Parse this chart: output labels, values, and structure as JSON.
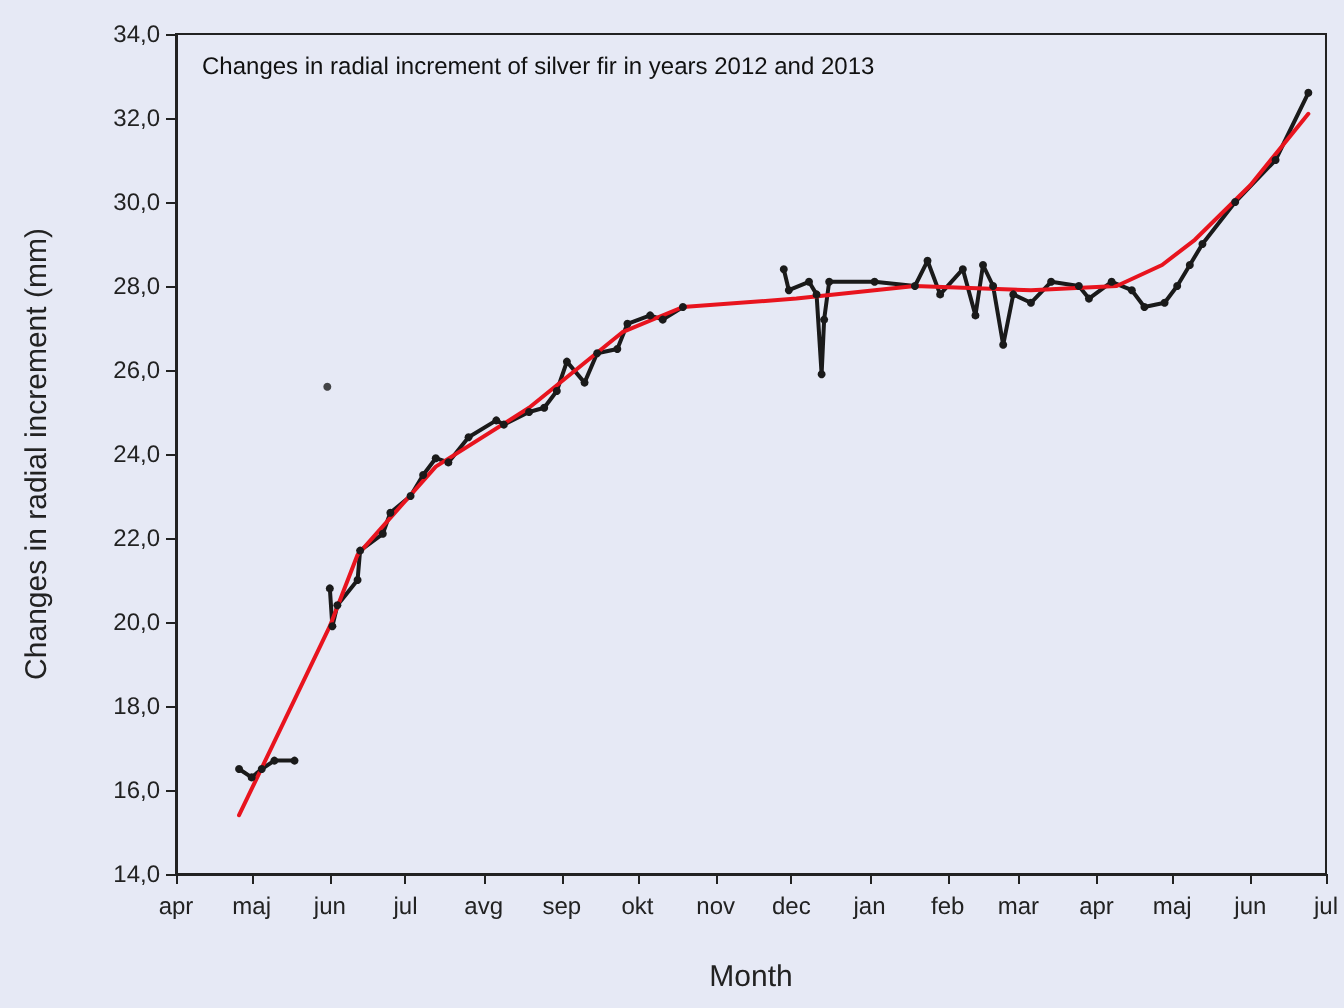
{
  "chart_data": {
    "type": "line",
    "title": "Changes in radial increment of silver fir in years 2012 and 2013",
    "xlabel": "Month",
    "ylabel": "Changes in radial increment (mm)",
    "xlim": [
      "2012-04-01",
      "2013-07-01"
    ],
    "xticks": [
      {
        "value": "2012-04-01",
        "label": "apr"
      },
      {
        "value": "2012-05-01",
        "label": "maj"
      },
      {
        "value": "2012-06-01",
        "label": "jun"
      },
      {
        "value": "2012-07-01",
        "label": "jul"
      },
      {
        "value": "2012-08-01",
        "label": "avg"
      },
      {
        "value": "2012-09-01",
        "label": "sep"
      },
      {
        "value": "2012-10-01",
        "label": "okt"
      },
      {
        "value": "2012-11-01",
        "label": "nov"
      },
      {
        "value": "2012-12-01",
        "label": "dec"
      },
      {
        "value": "2013-01-01",
        "label": "jan"
      },
      {
        "value": "2013-02-01",
        "label": "feb"
      },
      {
        "value": "2013-03-01",
        "label": "mar"
      },
      {
        "value": "2013-04-01",
        "label": "apr"
      },
      {
        "value": "2013-05-01",
        "label": "maj"
      },
      {
        "value": "2013-06-01",
        "label": "jun"
      },
      {
        "value": "2013-07-01",
        "label": "jul"
      }
    ],
    "ylim": [
      14,
      34
    ],
    "yticks": [
      {
        "value": 14,
        "label": "14,0"
      },
      {
        "value": 16,
        "label": "16,0"
      },
      {
        "value": 18,
        "label": "18,0"
      },
      {
        "value": 20,
        "label": "20,0"
      },
      {
        "value": 22,
        "label": "22,0"
      },
      {
        "value": 24,
        "label": "24,0"
      },
      {
        "value": 26,
        "label": "26,0"
      },
      {
        "value": 28,
        "label": "28,0"
      },
      {
        "value": 30,
        "label": "30,0"
      },
      {
        "value": 32,
        "label": "32,0"
      },
      {
        "value": 34,
        "label": "34,0"
      }
    ],
    "grid": false,
    "line_style": "solid",
    "series": [
      {
        "color": "#1a1a1a",
        "marker": "circle",
        "x": [
          "2012-04-26",
          "2012-05-01",
          "2012-05-05",
          "2012-05-10",
          "2012-05-18"
        ],
        "values": [
          16.5,
          16.3,
          16.5,
          16.7,
          16.7
        ]
      },
      {
        "type": "scatter",
        "color": "#1a1a1a",
        "marker": "circle",
        "x": [
          "2012-05-31"
        ],
        "values": [
          25.6
        ]
      },
      {
        "color": "#1a1a1a",
        "marker": "circle",
        "x": [
          "2012-06-01",
          "2012-06-02",
          "2012-06-04",
          "2012-06-12",
          "2012-06-13",
          "2012-06-22",
          "2012-06-25",
          "2012-07-03",
          "2012-07-08",
          "2012-07-13",
          "2012-07-18",
          "2012-07-26",
          "2012-08-06",
          "2012-08-09",
          "2012-08-19",
          "2012-08-25",
          "2012-08-30",
          "2012-09-03",
          "2012-09-10",
          "2012-09-15",
          "2012-09-23",
          "2012-09-27",
          "2012-10-06",
          "2012-10-11",
          "2012-10-19"
        ],
        "values": [
          20.8,
          19.9,
          20.4,
          21.0,
          21.7,
          22.1,
          22.6,
          23.0,
          23.5,
          23.9,
          23.8,
          24.4,
          24.8,
          24.7,
          25.0,
          25.1,
          25.5,
          26.2,
          25.7,
          26.4,
          26.5,
          27.1,
          27.3,
          27.2,
          27.5
        ]
      },
      {
        "color": "#1a1a1a",
        "marker": "circle",
        "x": [
          "2012-11-28",
          "2012-11-30",
          "2012-12-08",
          "2012-12-11",
          "2012-12-13",
          "2012-12-14",
          "2012-12-16",
          "2013-01-03",
          "2013-01-19",
          "2013-01-24",
          "2013-01-29",
          "2013-02-07",
          "2013-02-12",
          "2013-02-15",
          "2013-02-19",
          "2013-02-23",
          "2013-02-27",
          "2013-03-06",
          "2013-03-14",
          "2013-03-25",
          "2013-03-29",
          "2013-04-07",
          "2013-04-15",
          "2013-04-20",
          "2013-04-28",
          "2013-05-03",
          "2013-05-08",
          "2013-05-13",
          "2013-05-26",
          "2013-06-11",
          "2013-06-24"
        ],
        "values": [
          28.4,
          27.9,
          28.1,
          27.8,
          25.9,
          27.2,
          28.1,
          28.1,
          28.0,
          28.6,
          27.8,
          28.4,
          27.3,
          28.5,
          28.0,
          26.6,
          27.8,
          27.6,
          28.1,
          28.0,
          27.7,
          28.1,
          27.9,
          27.5,
          27.6,
          28.0,
          28.5,
          29.0,
          30.0,
          31.0,
          32.6
        ]
      },
      {
        "color": "#e8141e",
        "marker": "none",
        "x": [
          "2012-04-26",
          "2012-06-01",
          "2012-06-12",
          "2012-07-13",
          "2012-08-19",
          "2012-09-25",
          "2012-10-19",
          "2012-12-03",
          "2013-01-19",
          "2013-03-06",
          "2013-04-09",
          "2013-04-27",
          "2013-05-10",
          "2013-06-01",
          "2013-06-24"
        ],
        "values": [
          15.4,
          19.9,
          21.6,
          23.7,
          25.1,
          26.9,
          27.5,
          27.7,
          28.0,
          27.9,
          28.0,
          28.5,
          29.1,
          30.4,
          32.1
        ]
      }
    ]
  }
}
